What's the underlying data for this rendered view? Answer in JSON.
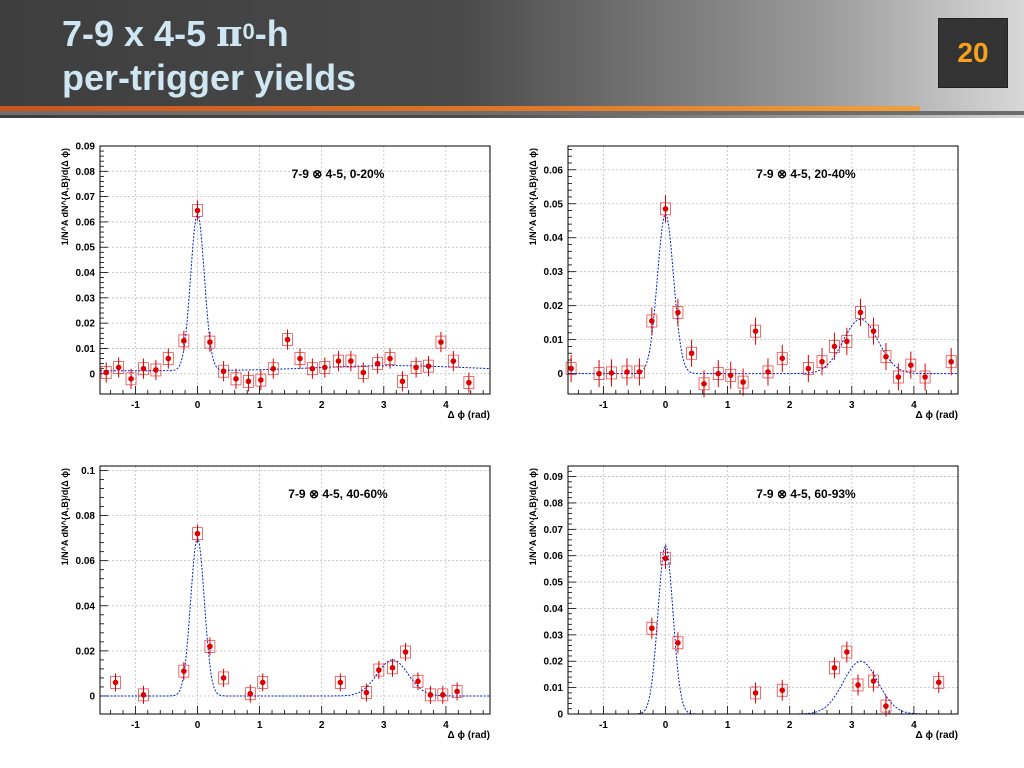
{
  "slide": {
    "title_line1_a": "7-9 x 4-5 ",
    "title_pi": "π",
    "title_sup": "0",
    "title_line1_b": "-h",
    "title_line2": "per-trigger yields",
    "page_number": "20"
  },
  "colors": {
    "points": "#dd0000",
    "fit": "#0022cc",
    "grid": "#bdbdbd",
    "title": "#cfe7f2",
    "page_number": "#f6a21c"
  },
  "chart_data": [
    {
      "type": "scatter",
      "label": "7-9 ⊗ 4-5, 0-20%",
      "xlabel": "Δ ϕ (rad)",
      "ylabel": "1/N^A dN^{A,B}/d(Δ ϕ)",
      "xlim": [
        -1.57,
        4.71
      ],
      "ylim": [
        -0.008,
        0.09
      ],
      "xticks": [
        -1,
        0,
        1,
        2,
        3,
        4
      ],
      "yticks": [
        0,
        0.01,
        0.02,
        0.03,
        0.04,
        0.05,
        0.06,
        0.07,
        0.08,
        0.09
      ],
      "ytick_labels": [
        "0",
        "0.01",
        "0.02",
        "0.03",
        "0.04",
        "0.05",
        "0.06",
        "0.07",
        "0.08",
        "0.09"
      ],
      "grid": true,
      "fit": {
        "near_amp": 0.062,
        "near_sigma": 0.11,
        "away_amp": 0.002,
        "away_sigma": 1.2,
        "baseline": 0.0012
      },
      "points": [
        {
          "x": -1.47,
          "y": 0.0005
        },
        {
          "x": -1.27,
          "y": 0.0025
        },
        {
          "x": -1.07,
          "y": -0.002
        },
        {
          "x": -0.87,
          "y": 0.002
        },
        {
          "x": -0.67,
          "y": 0.0015
        },
        {
          "x": -0.47,
          "y": 0.006
        },
        {
          "x": -0.22,
          "y": 0.013
        },
        {
          "x": 0.0,
          "y": 0.0645
        },
        {
          "x": 0.2,
          "y": 0.0125
        },
        {
          "x": 0.42,
          "y": 0.001
        },
        {
          "x": 0.62,
          "y": -0.002
        },
        {
          "x": 0.82,
          "y": -0.003
        },
        {
          "x": 1.02,
          "y": -0.0025
        },
        {
          "x": 1.22,
          "y": 0.002
        },
        {
          "x": 1.45,
          "y": 0.0135
        },
        {
          "x": 1.65,
          "y": 0.006
        },
        {
          "x": 1.85,
          "y": 0.002
        },
        {
          "x": 2.05,
          "y": 0.0025
        },
        {
          "x": 2.27,
          "y": 0.005
        },
        {
          "x": 2.47,
          "y": 0.005
        },
        {
          "x": 2.67,
          "y": 0.0005
        },
        {
          "x": 2.9,
          "y": 0.004
        },
        {
          "x": 3.1,
          "y": 0.006
        },
        {
          "x": 3.3,
          "y": -0.003
        },
        {
          "x": 3.52,
          "y": 0.0025
        },
        {
          "x": 3.72,
          "y": 0.003
        },
        {
          "x": 3.92,
          "y": 0.0125
        },
        {
          "x": 4.12,
          "y": 0.005
        },
        {
          "x": 4.37,
          "y": -0.0035
        }
      ]
    },
    {
      "type": "scatter",
      "label": "7-9 ⊗ 4-5, 20-40%",
      "xlabel": "Δ ϕ (rad)",
      "ylabel": "1/N^A dN^{A,B}/d(Δ ϕ)",
      "xlim": [
        -1.57,
        4.71
      ],
      "ylim": [
        -0.006,
        0.067
      ],
      "xticks": [
        -1,
        0,
        1,
        2,
        3,
        4
      ],
      "yticks": [
        0,
        0.01,
        0.02,
        0.03,
        0.04,
        0.05,
        0.06
      ],
      "ytick_labels": [
        "0",
        "0.01",
        "0.02",
        "0.03",
        "0.04",
        "0.05",
        "0.06"
      ],
      "grid": true,
      "fit": {
        "near_amp": 0.047,
        "near_sigma": 0.13,
        "away_amp": 0.016,
        "away_sigma": 0.28,
        "baseline": 0.0
      },
      "points": [
        {
          "x": -1.52,
          "y": 0.0015
        },
        {
          "x": -1.07,
          "y": 0.0
        },
        {
          "x": -0.87,
          "y": 0.0002
        },
        {
          "x": -0.62,
          "y": 0.0005
        },
        {
          "x": -0.42,
          "y": 0.0005
        },
        {
          "x": -0.22,
          "y": 0.0155
        },
        {
          "x": 0.0,
          "y": 0.0485
        },
        {
          "x": 0.2,
          "y": 0.018
        },
        {
          "x": 0.42,
          "y": 0.006
        },
        {
          "x": 0.62,
          "y": -0.003
        },
        {
          "x": 0.85,
          "y": 0.0
        },
        {
          "x": 1.05,
          "y": -0.0005
        },
        {
          "x": 1.25,
          "y": -0.0025
        },
        {
          "x": 1.45,
          "y": 0.0125
        },
        {
          "x": 1.65,
          "y": 0.0005
        },
        {
          "x": 1.88,
          "y": 0.0045
        },
        {
          "x": 2.3,
          "y": 0.0015
        },
        {
          "x": 2.52,
          "y": 0.0035
        },
        {
          "x": 2.72,
          "y": 0.008
        },
        {
          "x": 2.92,
          "y": 0.0095
        },
        {
          "x": 3.14,
          "y": 0.018
        },
        {
          "x": 3.35,
          "y": 0.0125
        },
        {
          "x": 3.55,
          "y": 0.005
        },
        {
          "x": 3.75,
          "y": -0.001
        },
        {
          "x": 3.95,
          "y": 0.0025
        },
        {
          "x": 4.18,
          "y": -0.001
        },
        {
          "x": 4.6,
          "y": 0.0035
        }
      ]
    },
    {
      "type": "scatter",
      "label": "7-9 ⊗ 4-5, 40-60%",
      "xlabel": "Δ ϕ (rad)",
      "ylabel": "1/N^A dN^{A,B}/d(Δ ϕ)",
      "xlim": [
        -1.57,
        4.71
      ],
      "ylim": [
        -0.008,
        0.102
      ],
      "xticks": [
        -1,
        0,
        1,
        2,
        3,
        4
      ],
      "yticks": [
        0,
        0.02,
        0.04,
        0.06,
        0.08,
        0.1
      ],
      "ytick_labels": [
        "0",
        "0.02",
        "0.04",
        "0.06",
        "0.08",
        "0.1"
      ],
      "grid": true,
      "fit": {
        "near_amp": 0.07,
        "near_sigma": 0.11,
        "away_amp": 0.016,
        "away_sigma": 0.25,
        "baseline": 0.0
      },
      "points": [
        {
          "x": -1.32,
          "y": 0.006
        },
        {
          "x": -0.87,
          "y": 0.0005
        },
        {
          "x": -0.22,
          "y": 0.011
        },
        {
          "x": 0.0,
          "y": 0.072
        },
        {
          "x": 0.2,
          "y": 0.022
        },
        {
          "x": 0.42,
          "y": 0.008
        },
        {
          "x": 0.85,
          "y": 0.001
        },
        {
          "x": 1.05,
          "y": 0.006
        },
        {
          "x": 2.3,
          "y": 0.006
        },
        {
          "x": 2.72,
          "y": 0.0015
        },
        {
          "x": 2.92,
          "y": 0.0115
        },
        {
          "x": 3.14,
          "y": 0.0125
        },
        {
          "x": 3.35,
          "y": 0.0195
        },
        {
          "x": 3.55,
          "y": 0.0065
        },
        {
          "x": 3.75,
          "y": 0.0005
        },
        {
          "x": 3.95,
          "y": 0.0005
        },
        {
          "x": 4.18,
          "y": 0.002
        }
      ]
    },
    {
      "type": "scatter",
      "label": "7-9 ⊗ 4-5, 60-93%",
      "xlabel": "Δ ϕ (rad)",
      "ylabel": "1/N^A dN^{A,B}/d(Δ ϕ)",
      "xlim": [
        -1.57,
        4.71
      ],
      "ylim": [
        0,
        0.094
      ],
      "xticks": [
        -1,
        0,
        1,
        2,
        3,
        4
      ],
      "yticks": [
        0,
        0.01,
        0.02,
        0.03,
        0.04,
        0.05,
        0.06,
        0.07,
        0.08,
        0.09
      ],
      "ytick_labels": [
        "0",
        "0.01",
        "0.02",
        "0.03",
        "0.04",
        "0.05",
        "0.06",
        "0.07",
        "0.08",
        "0.09"
      ],
      "grid": true,
      "fit": {
        "near_amp": 0.064,
        "near_sigma": 0.12,
        "away_amp": 0.02,
        "away_sigma": 0.28,
        "baseline": 0.0
      },
      "points": [
        {
          "x": -0.22,
          "y": 0.0325
        },
        {
          "x": 0.0,
          "y": 0.059
        },
        {
          "x": 0.2,
          "y": 0.027
        },
        {
          "x": 1.45,
          "y": 0.008
        },
        {
          "x": 1.88,
          "y": 0.009
        },
        {
          "x": 2.72,
          "y": 0.0175
        },
        {
          "x": 2.92,
          "y": 0.0235
        },
        {
          "x": 3.1,
          "y": 0.011
        },
        {
          "x": 3.35,
          "y": 0.0125
        },
        {
          "x": 3.55,
          "y": 0.003
        },
        {
          "x": 4.4,
          "y": 0.012
        }
      ]
    }
  ]
}
